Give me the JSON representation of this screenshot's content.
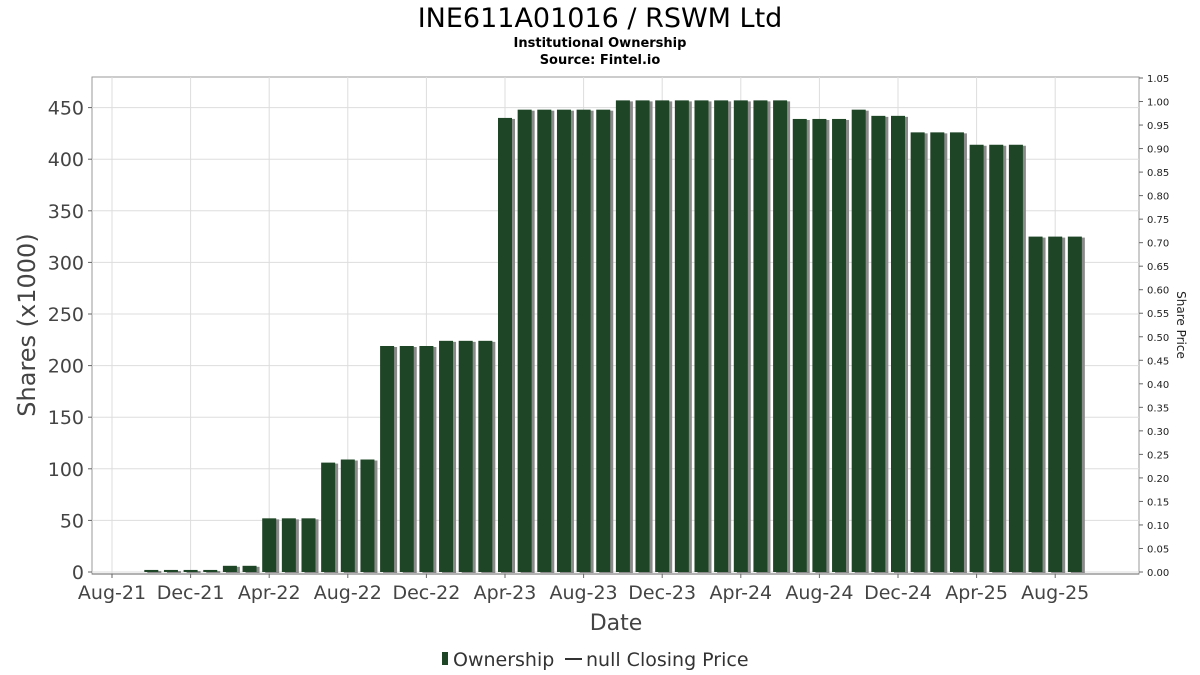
{
  "chart_data": {
    "type": "bar",
    "title": "INE611A01016 / RSWM Ltd",
    "subtitle": "Institutional Ownership",
    "source": "Source: Fintel.io",
    "xlabel": "Date",
    "ylabel": "Shares (x1000)",
    "y2label": "Share Price",
    "ylim": [
      0,
      475
    ],
    "y2lim": [
      0,
      1.05
    ],
    "yticks": [
      "0",
      "50",
      "100",
      "150",
      "200",
      "250",
      "300",
      "350",
      "400",
      "450"
    ],
    "y2ticks": [
      "0.00",
      "0.05",
      "0.10",
      "0.15",
      "0.20",
      "0.25",
      "0.30",
      "0.35",
      "0.40",
      "0.45",
      "0.50",
      "0.55",
      "0.60",
      "0.65",
      "0.70",
      "0.75",
      "0.80",
      "0.85",
      "0.90",
      "0.95",
      "1.00",
      "1.05"
    ],
    "xticks": [
      "Aug-21",
      "Dec-21",
      "Apr-22",
      "Aug-22",
      "Dec-22",
      "Apr-23",
      "Aug-23",
      "Dec-23",
      "Apr-24",
      "Aug-24",
      "Dec-24",
      "Apr-25",
      "Aug-25"
    ],
    "xtick_months": [
      0,
      4,
      8,
      12,
      16,
      20,
      24,
      28,
      32,
      36,
      40,
      44,
      48
    ],
    "grid": true,
    "legend_position": "bottom",
    "series": [
      {
        "name": "Ownership",
        "color": "#1e4526",
        "months": [
          2,
          3,
          4,
          5,
          6,
          7,
          8,
          9,
          10,
          11,
          12,
          13,
          14,
          15,
          16,
          17,
          18,
          19,
          20,
          21,
          22,
          23,
          24,
          25,
          26,
          27,
          28,
          29,
          30,
          31,
          32,
          33,
          34,
          35,
          36,
          37,
          38,
          39,
          40,
          41,
          42,
          43,
          44,
          45,
          46,
          47,
          48,
          49
        ],
        "values": [
          2,
          2,
          2,
          2,
          6,
          6,
          52,
          52,
          52,
          106,
          109,
          109,
          219,
          219,
          219,
          224,
          224,
          224,
          440,
          448,
          448,
          448,
          448,
          448,
          457,
          457,
          457,
          457,
          457,
          457,
          457,
          457,
          457,
          439,
          439,
          439,
          448,
          442,
          442,
          426,
          426,
          426,
          414,
          414,
          414,
          325,
          325,
          325
        ]
      },
      {
        "name": "null Closing Price",
        "color": "#333333",
        "values": []
      }
    ]
  }
}
